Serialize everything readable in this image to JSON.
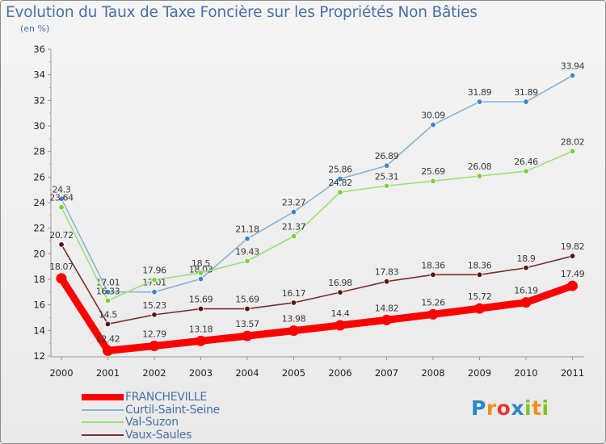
{
  "title": "Evolution du Taux de Taxe Foncière sur les Propriétés Non Bâties",
  "unit_label": "(en %)",
  "brand": {
    "letters": [
      {
        "ch": "P",
        "color": "#2a86c8"
      },
      {
        "ch": "r",
        "color": "#f39019"
      },
      {
        "ch": "o",
        "color": "#e23b2a"
      },
      {
        "ch": "x",
        "color": "#2a86c8"
      },
      {
        "ch": "i",
        "color": "#84c225"
      },
      {
        "ch": "t",
        "color": "#f39019"
      },
      {
        "ch": "i",
        "color": "#84c225"
      }
    ]
  },
  "chart_data": {
    "type": "line",
    "title": "Evolution du Taux de Taxe Foncière sur les Propriétés Non Bâties",
    "ylabel": "(en %)",
    "xlabel": "",
    "x": [
      "2000",
      "2001",
      "2002",
      "2003",
      "2004",
      "2005",
      "2006",
      "2007",
      "2008",
      "2009",
      "2010",
      "2011"
    ],
    "ylim": [
      12,
      36
    ],
    "yticks": [
      12,
      14,
      16,
      18,
      20,
      22,
      24,
      26,
      28,
      30,
      32,
      34,
      36
    ],
    "grid": false,
    "legend": "bottom-left",
    "series": [
      {
        "name": "FRANCHEVILLE",
        "color": "#ff0000",
        "marker": "#ff0000",
        "bold": true,
        "values": [
          18.07,
          12.42,
          12.79,
          13.18,
          13.57,
          13.98,
          14.4,
          14.82,
          15.26,
          15.72,
          16.19,
          17.49
        ],
        "labels": [
          "18.07",
          "12.42",
          "12.79",
          "13.18",
          "13.57",
          "13.98",
          "14.4",
          "14.82",
          "15.26",
          "15.72",
          "16.19",
          "17.49"
        ]
      },
      {
        "name": "Curtil-Saint-Seine",
        "color": "#88b4d8",
        "marker": "#3f86c6",
        "bold": false,
        "values": [
          24.3,
          17.01,
          17.01,
          18.03,
          21.18,
          23.27,
          25.86,
          26.89,
          30.09,
          31.89,
          31.89,
          33.94
        ],
        "labels": [
          "24.3",
          "17.01",
          "17.01",
          "18.03",
          "21.18",
          "23.27",
          "25.86",
          "26.89",
          "30.09",
          "31.89",
          "31.89",
          "33.94"
        ]
      },
      {
        "name": "Val-Suzon",
        "color": "#9be078",
        "marker": "#7ed03b",
        "bold": false,
        "values": [
          23.64,
          16.33,
          17.96,
          18.5,
          19.43,
          21.37,
          24.82,
          25.31,
          25.69,
          26.08,
          26.46,
          28.02
        ],
        "labels": [
          "23.64",
          "16.33",
          "17.96",
          "18.5",
          "19.43",
          "21.37",
          "24.82",
          "25.31",
          "25.69",
          "26.08",
          "26.46",
          "28.02"
        ]
      },
      {
        "name": "Vaux-Saules",
        "color": "#7a2e2e",
        "marker": "#5a1414",
        "bold": false,
        "values": [
          20.72,
          14.5,
          15.23,
          15.69,
          15.69,
          16.17,
          16.98,
          17.83,
          18.36,
          18.36,
          18.9,
          19.82
        ],
        "labels": [
          "20.72",
          "14.5",
          "15.23",
          "15.69",
          "15.69",
          "16.17",
          "16.98",
          "17.83",
          "18.36",
          "18.36",
          "18.9",
          "19.82"
        ]
      }
    ]
  }
}
